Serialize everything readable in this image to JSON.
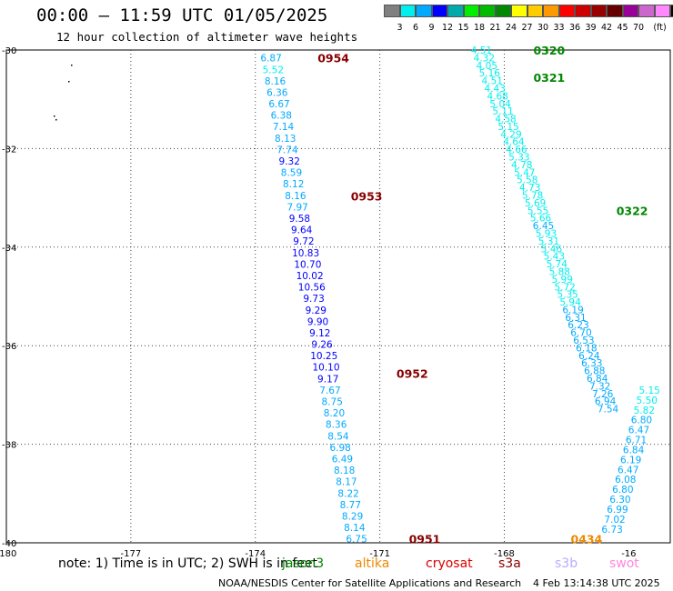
{
  "header": {
    "title": "00:00 — 11:59 UTC 01/05/2025",
    "subtitle": "12 hour collection of altimeter wave heights"
  },
  "colorbar": {
    "colors": [
      "#808080",
      "#00eeee",
      "#00aaff",
      "#0000ff",
      "#00aaaa",
      "#00ee00",
      "#00bb00",
      "#008800",
      "#ffff00",
      "#ffcc00",
      "#ff9900",
      "#ff0000",
      "#cc0000",
      "#990000",
      "#660000",
      "#990099",
      "#cc66cc",
      "#ff88ff",
      "#000000"
    ],
    "labels": [
      "3",
      "6",
      "9",
      "12",
      "15",
      "18",
      "21",
      "24",
      "27",
      "30",
      "33",
      "36",
      "39",
      "42",
      "45",
      "70",
      "(ft)"
    ]
  },
  "chart_data": {
    "type": "scatter",
    "title": "00:00 — 11:59 UTC 01/05/2025",
    "subtitle": "12 hour collection of altimeter wave heights",
    "xlim": [
      -180,
      -164
    ],
    "ylim": [
      -40,
      -30
    ],
    "x_ticks": [
      "-180",
      "-177",
      "-174",
      "-171",
      "-168",
      "-16"
    ],
    "y_ticks": [
      "-30",
      "-32",
      "-34",
      "-36",
      "-38",
      "-40"
    ],
    "track_labels": [
      {
        "text": "0954",
        "x": -172.5,
        "y": -30.16,
        "color": "#880000"
      },
      {
        "text": "0953",
        "x": -171.7,
        "y": -32.96,
        "color": "#880000"
      },
      {
        "text": "0952",
        "x": -170.6,
        "y": -36.56,
        "color": "#880000"
      },
      {
        "text": "0951",
        "x": -170.3,
        "y": -39.92,
        "color": "#880000"
      },
      {
        "text": "0320",
        "x": -167.3,
        "y": -30.0,
        "color": "#008800"
      },
      {
        "text": "0321",
        "x": -167.3,
        "y": -30.55,
        "color": "#008800"
      },
      {
        "text": "0322",
        "x": -165.3,
        "y": -33.26,
        "color": "#008800"
      },
      {
        "text": "0434",
        "x": -166.4,
        "y": -39.92,
        "color": "#ee8800"
      }
    ],
    "series": [
      {
        "x_start": -173.62,
        "y_start": -30.16,
        "x_end": -171.56,
        "y_end": -39.92,
        "values": [
          6.87,
          5.52,
          8.16,
          6.36,
          6.67,
          6.38,
          7.14,
          8.13,
          7.74,
          9.32,
          8.59,
          8.12,
          8.16,
          7.97,
          9.58,
          9.64,
          9.72,
          10.83,
          10.7,
          10.02,
          10.56,
          9.73,
          9.29,
          9.9,
          9.12,
          9.26,
          10.25,
          10.1,
          9.17,
          7.67,
          8.75,
          8.2,
          8.36,
          8.54,
          6.98,
          6.49,
          8.18,
          8.17,
          8.22,
          8.77,
          8.29,
          8.14,
          6.75
        ]
      },
      {
        "x_start": -168.55,
        "y_start": -30.0,
        "x_end": -165.5,
        "y_end": -37.28,
        "values": [
          4.51,
          4.32,
          4.05,
          5.16,
          4.51,
          4.43,
          4.68,
          5.04,
          5.11,
          4.58,
          5.15,
          4.29,
          4.64,
          4.66,
          5.33,
          4.78,
          5.47,
          5.58,
          4.73,
          5.78,
          5.69,
          5.55,
          5.66,
          6.45,
          5.93,
          5.31,
          5.46,
          5.43,
          5.74,
          5.88,
          5.99,
          5.72,
          5.35,
          5.94,
          6.19,
          6.31,
          6.23,
          6.7,
          6.53,
          6.18,
          6.24,
          6.33,
          6.88,
          6.84,
          7.32,
          7.26,
          6.94,
          7.54
        ]
      },
      {
        "x_start": -164.5,
        "y_start": -36.9,
        "x_end": -165.4,
        "y_end": -39.72,
        "values": [
          5.15,
          5.5,
          5.82,
          6.8,
          6.47,
          6.71,
          6.84,
          6.19,
          6.47,
          6.08,
          6.8,
          6.3,
          6.99,
          7.02,
          6.73
        ]
      }
    ],
    "point_labels_note": "Each value is drawn at its track point, colored by the wave-height color scale."
  },
  "footer": {
    "note": "note: 1) Time is in UTC; 2) SWH is in feet",
    "legend": [
      {
        "label": "jason3",
        "color": "#008800"
      },
      {
        "label": "altika",
        "color": "#ee8800"
      },
      {
        "label": "cryosat",
        "color": "#dd0000"
      },
      {
        "label": "s3a",
        "color": "#880000"
      },
      {
        "label": "s3b",
        "color": "#bbaaff"
      },
      {
        "label": "swot",
        "color": "#ff88dd"
      }
    ],
    "credit": "NOAA/NESDIS Center for Satellite Applications and Research",
    "timestamp": "4 Feb 13:14:38 UTC 2025"
  }
}
